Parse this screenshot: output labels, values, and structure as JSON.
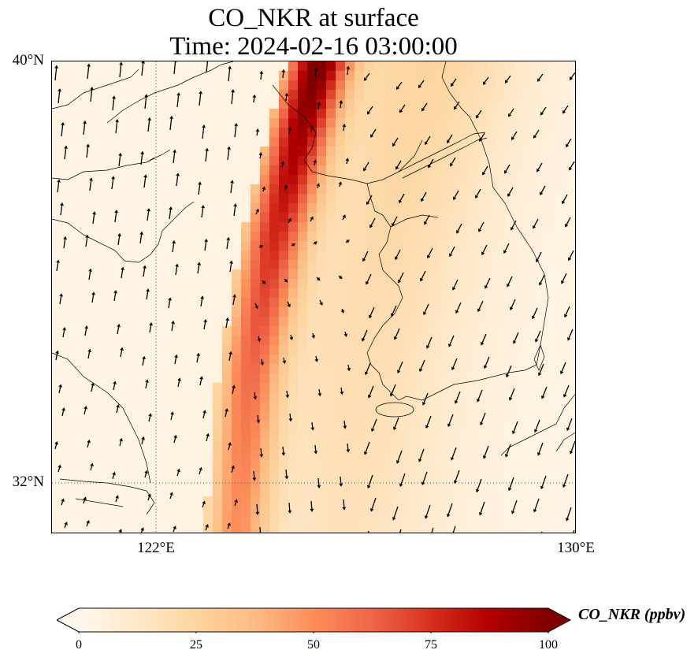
{
  "title": {
    "line1": "CO_NKR at surface",
    "line2": "Time: 2024-02-16 03:00:00"
  },
  "map": {
    "projection": "PlateCarree",
    "lon_range": [
      118.6,
      130.0
    ],
    "lat_range": [
      30.9,
      40.0
    ],
    "gridlines": {
      "style": "dotted",
      "lons": [
        122
      ],
      "lats": [
        32
      ]
    },
    "lat_ticks": [
      {
        "value": 40,
        "label": "40°N"
      },
      {
        "value": 32,
        "label": "32°N"
      }
    ],
    "lon_ticks": [
      {
        "value": 122,
        "label": "122°E"
      },
      {
        "value": 130,
        "label": "130°E"
      }
    ],
    "features": [
      "coastlines",
      "land-borders"
    ],
    "field": {
      "variable": "CO_NKR",
      "units": "ppbv",
      "plume_axis": [
        [
          124.4,
          40.0
        ],
        [
          124.0,
          38.7
        ],
        [
          123.4,
          36.5
        ],
        [
          122.9,
          34.0
        ],
        [
          122.7,
          32.0
        ],
        [
          122.6,
          30.9
        ]
      ],
      "plume_peak_ppbv": 95,
      "background_ppbv": 10,
      "peak_region": "north of 38.5°N near 124°E"
    },
    "wind_vectors": {
      "description": "quiver arrows, northerly-to-southerly flow: southerlies over west (China), northwesterlies over south Korea/East Sea"
    }
  },
  "colorbar": {
    "cmap": "OrRd",
    "min": 0,
    "max": 100,
    "extend": "both",
    "ticks": [
      {
        "value": 0,
        "label": "0"
      },
      {
        "value": 25,
        "label": "25"
      },
      {
        "value": 50,
        "label": "50"
      },
      {
        "value": 75,
        "label": "75"
      },
      {
        "value": 100,
        "label": "100"
      }
    ],
    "label": "CO_NKR (ppbv)",
    "colors": [
      "#fff7ec",
      "#fee8c8",
      "#fdd49e",
      "#fdbb84",
      "#fc8d59",
      "#ef6548",
      "#d7301f",
      "#b30000",
      "#7f0000"
    ]
  }
}
